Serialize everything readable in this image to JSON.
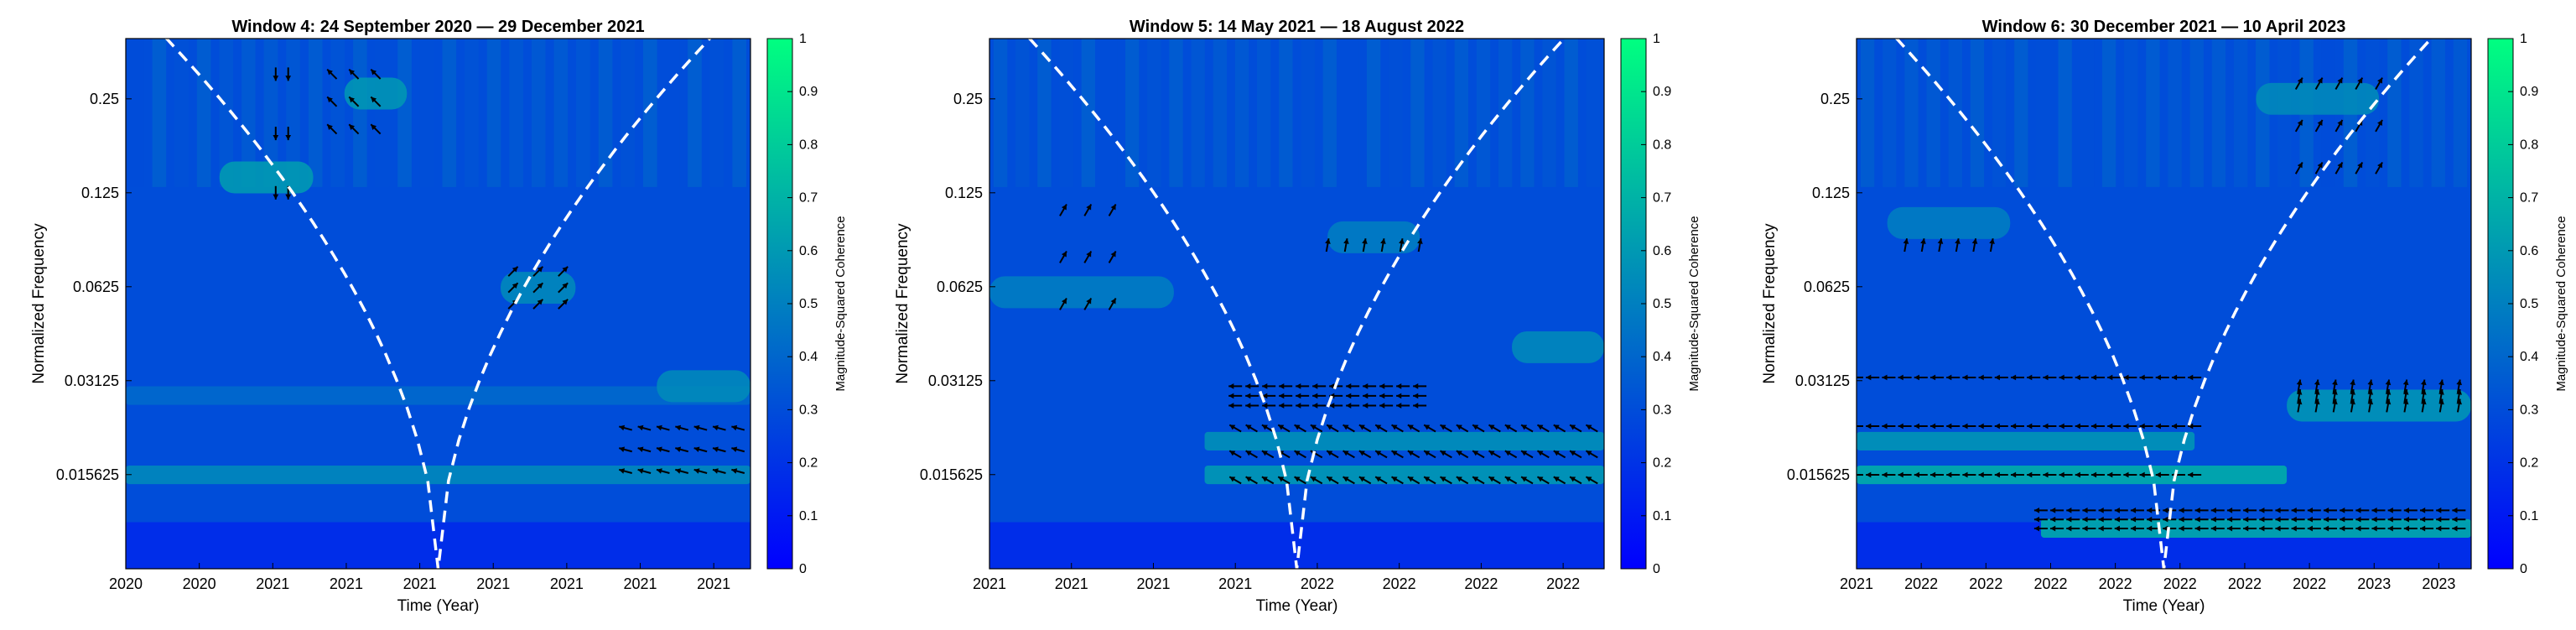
{
  "chart_data": [
    {
      "type": "heatmap",
      "title": "Window 4: 24 September 2020 — 29 December 2021",
      "xlabel": "Time (Year)",
      "ylabel": "Normalized Frequency",
      "x_tick_labels": [
        "2020",
        "2020",
        "2021",
        "2021",
        "2021",
        "2021",
        "2021",
        "2021",
        "2021"
      ],
      "y_tick_labels": [
        "0.25",
        "0.125",
        "0.0625",
        "0.03125",
        "0.015625"
      ],
      "y_ticks": [
        0.25,
        0.125,
        0.0625,
        0.03125,
        0.015625
      ],
      "y_scale": "log2",
      "ylim": [
        0.0078,
        0.39
      ],
      "colorbar": {
        "label": "Magnitude-Squared Coherence",
        "range": [
          0,
          1
        ],
        "tick_labels": [
          "0",
          "0.1",
          "0.2",
          "0.3",
          "0.4",
          "0.5",
          "0.6",
          "0.7",
          "0.8",
          "0.9",
          "1"
        ]
      },
      "colormap": [
        "#0000ff",
        "#00ff80"
      ],
      "background_coherence": 0.3,
      "cone_of_influence": {
        "style": "white-dashed",
        "min_at_fraction": 0.5
      },
      "features": [
        {
          "t": [
            0.0,
            1.0
          ],
          "f": 0.0156,
          "coherence": 0.55,
          "ridge": true
        },
        {
          "t": [
            0.0,
            1.0
          ],
          "f": 0.028,
          "coherence": 0.42,
          "ridge": true
        },
        {
          "t": [
            0.15,
            0.3
          ],
          "f": 0.14,
          "coherence": 0.62
        },
        {
          "t": [
            0.35,
            0.45
          ],
          "f": 0.26,
          "coherence": 0.6
        },
        {
          "t": [
            0.6,
            0.72
          ],
          "f": 0.062,
          "coherence": 0.55
        },
        {
          "t": [
            0.85,
            1.0
          ],
          "f": 0.03,
          "coherence": 0.55
        }
      ],
      "phase_arrows": [
        {
          "t": [
            0.24,
            0.26
          ],
          "f": [
            0.125,
            0.3
          ],
          "angle_deg": 270
        },
        {
          "t": [
            0.33,
            0.4
          ],
          "f": [
            0.2,
            0.3
          ],
          "angle_deg": 135
        },
        {
          "t": [
            0.62,
            0.7
          ],
          "f": [
            0.055,
            0.07
          ],
          "angle_deg": 45
        },
        {
          "t": [
            0.8,
            0.98
          ],
          "f": [
            0.016,
            0.022
          ],
          "angle_deg": 165
        }
      ]
    },
    {
      "type": "heatmap",
      "title": "Window 5: 14 May 2021 — 18 August 2022",
      "xlabel": "Time (Year)",
      "ylabel": "Normalized Frequency",
      "x_tick_labels": [
        "2021",
        "2021",
        "2021",
        "2021",
        "2022",
        "2022",
        "2022",
        "2022"
      ],
      "y_tick_labels": [
        "0.25",
        "0.125",
        "0.0625",
        "0.03125",
        "0.015625"
      ],
      "y_ticks": [
        0.25,
        0.125,
        0.0625,
        0.03125,
        0.015625
      ],
      "y_scale": "log2",
      "ylim": [
        0.0078,
        0.39
      ],
      "colorbar": {
        "label": "Magnitude-Squared Coherence",
        "range": [
          0,
          1
        ],
        "tick_labels": [
          "0",
          "0.1",
          "0.2",
          "0.3",
          "0.4",
          "0.5",
          "0.6",
          "0.7",
          "0.8",
          "0.9",
          "1"
        ]
      },
      "colormap": [
        "#0000ff",
        "#00ff80"
      ],
      "background_coherence": 0.3,
      "cone_of_influence": {
        "style": "white-dashed",
        "min_at_fraction": 0.5
      },
      "features": [
        {
          "t": [
            0.35,
            1.0
          ],
          "f": 0.0156,
          "coherence": 0.62,
          "ridge": true
        },
        {
          "t": [
            0.35,
            1.0
          ],
          "f": 0.02,
          "coherence": 0.58,
          "ridge": true
        },
        {
          "t": [
            0.0,
            0.3
          ],
          "f": 0.06,
          "coherence": 0.5
        },
        {
          "t": [
            0.55,
            0.7
          ],
          "f": 0.09,
          "coherence": 0.5
        },
        {
          "t": [
            0.85,
            1.0
          ],
          "f": 0.04,
          "coherence": 0.55
        }
      ],
      "phase_arrows": [
        {
          "t": [
            0.4,
            0.7
          ],
          "f": [
            0.026,
            0.03
          ],
          "angle_deg": 180
        },
        {
          "t": [
            0.4,
            0.98
          ],
          "f": [
            0.015,
            0.022
          ],
          "angle_deg": 150
        },
        {
          "t": [
            0.55,
            0.7
          ],
          "f": [
            0.085,
            0.085
          ],
          "angle_deg": 80
        },
        {
          "t": [
            0.12,
            0.2
          ],
          "f": [
            0.055,
            0.11
          ],
          "angle_deg": 60
        }
      ]
    },
    {
      "type": "heatmap",
      "title": "Window 6: 30 December 2021 — 10 April 2023",
      "xlabel": "Time (Year)",
      "ylabel": "Normalized Frequency",
      "x_tick_labels": [
        "2021",
        "2022",
        "2022",
        "2022",
        "2022",
        "2022",
        "2022",
        "2022",
        "2023",
        "2023"
      ],
      "y_tick_labels": [
        "0.25",
        "0.125",
        "0.0625",
        "0.03125",
        "0.015625"
      ],
      "y_ticks": [
        0.25,
        0.125,
        0.0625,
        0.03125,
        0.015625
      ],
      "y_scale": "log2",
      "ylim": [
        0.0078,
        0.39
      ],
      "colorbar": {
        "label": "Magnitude-Squared Coherence",
        "range": [
          0,
          1
        ],
        "tick_labels": [
          "0",
          "0.1",
          "0.2",
          "0.3",
          "0.4",
          "0.5",
          "0.6",
          "0.7",
          "0.8",
          "0.9",
          "1"
        ]
      },
      "colormap": [
        "#0000ff",
        "#00ff80"
      ],
      "background_coherence": 0.3,
      "cone_of_influence": {
        "style": "white-dashed",
        "min_at_fraction": 0.5
      },
      "features": [
        {
          "t": [
            0.0,
            0.7
          ],
          "f": 0.0156,
          "coherence": 0.7,
          "ridge": true
        },
        {
          "t": [
            0.0,
            0.55
          ],
          "f": 0.02,
          "coherence": 0.6,
          "ridge": true
        },
        {
          "t": [
            0.3,
            1.0
          ],
          "f": 0.0105,
          "coherence": 0.7,
          "ridge": true
        },
        {
          "t": [
            0.7,
            1.0
          ],
          "f": 0.026,
          "coherence": 0.6
        },
        {
          "t": [
            0.05,
            0.25
          ],
          "f": 0.1,
          "coherence": 0.5
        },
        {
          "t": [
            0.65,
            0.85
          ],
          "f": 0.25,
          "coherence": 0.55
        }
      ],
      "phase_arrows": [
        {
          "t": [
            0.0,
            0.55
          ],
          "f": [
            0.0156,
            0.032
          ],
          "angle_deg": 180
        },
        {
          "t": [
            0.3,
            0.98
          ],
          "f": [
            0.0105,
            0.012
          ],
          "angle_deg": 180
        },
        {
          "t": [
            0.72,
            0.98
          ],
          "f": [
            0.026,
            0.03
          ],
          "angle_deg": 80
        },
        {
          "t": [
            0.08,
            0.22
          ],
          "f": [
            0.085,
            0.085
          ],
          "angle_deg": 80
        },
        {
          "t": [
            0.72,
            0.85
          ],
          "f": [
            0.15,
            0.28
          ],
          "angle_deg": 60
        }
      ]
    }
  ]
}
